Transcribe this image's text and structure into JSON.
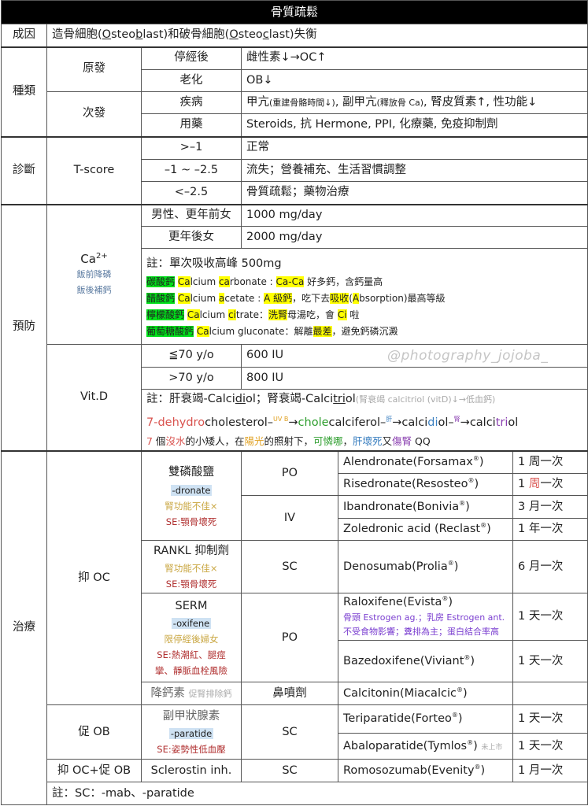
{
  "title": "骨質疏鬆",
  "cause": {
    "label": "成因",
    "text": [
      [
        "造骨細胞("
      ],
      [
        "O",
        "u"
      ],
      [
        "steo"
      ],
      [
        "b",
        "u"
      ],
      [
        "last)和破骨細胞("
      ],
      [
        "O",
        "u"
      ],
      [
        "steo"
      ],
      [
        "c",
        "u"
      ],
      [
        "last)失衡"
      ]
    ]
  },
  "types": {
    "label": "種類",
    "primary": {
      "label": "原發",
      "rows": [
        {
          "k": "停經後",
          "v": [
            [
              "雌性素↓→OC↑"
            ]
          ]
        },
        {
          "k": "老化",
          "v": [
            [
              "OB↓"
            ]
          ]
        }
      ]
    },
    "secondary": {
      "label": "次發",
      "rows": [
        {
          "k": "疾病",
          "v": [
            [
              "甲亢"
            ],
            [
              "(重建骨骼時間↓)",
              "sm"
            ],
            [
              ", 副甲亢"
            ],
            [
              "(釋放骨 Ca)",
              "sm"
            ],
            [
              ", 腎皮質素↑, 性功能↓"
            ]
          ]
        },
        {
          "k": "用藥",
          "v": [
            [
              "Steroids, 抗 Hermone, PPI, 化療藥, 免疫抑制劑"
            ]
          ]
        }
      ]
    }
  },
  "diagnosis": {
    "label": "診斷",
    "metric": "T-score",
    "rows": [
      {
        "k": ">–1",
        "v": "正常"
      },
      {
        "k": "–1 ~ –2.5",
        "v": "流失；營養補充、生活習慣調整"
      },
      {
        "k": "<–2.5",
        "v": "骨質疏鬆；藥物治療"
      }
    ]
  },
  "prevention": {
    "label": "預防",
    "calcium": {
      "label": "Ca",
      "label_sup": "2+",
      "notes": [
        "飯前降磷",
        "飯後補鈣"
      ],
      "rows": [
        {
          "k": "男性、更年前女",
          "v": "1000 mg/day"
        },
        {
          "k": "更年後女",
          "v": "2000 mg/day"
        }
      ],
      "note_title": "註：單次吸收高峰 500mg",
      "forms": [
        [
          [
            "碳酸鈣",
            "g"
          ],
          [
            " "
          ],
          [
            "Ca",
            "y"
          ],
          [
            "lcium "
          ],
          [
            "ca",
            "y"
          ],
          [
            "rbonate : "
          ],
          [
            "Ca-Ca",
            "y"
          ],
          [
            " 好多鈣，含鈣量高"
          ]
        ],
        [
          [
            "醋酸鈣",
            "g"
          ],
          [
            " "
          ],
          [
            "Ca",
            "y"
          ],
          [
            "lcium "
          ],
          [
            "a",
            "y"
          ],
          [
            "cetate : "
          ],
          [
            "A 級鈣",
            "y"
          ],
          [
            "，吃下去"
          ],
          [
            "吸收",
            "y"
          ],
          [
            "("
          ],
          [
            "A",
            "y"
          ],
          [
            "bsorption)最高等級"
          ]
        ],
        [
          [
            "檸檬酸鈣",
            "g"
          ],
          [
            " "
          ],
          [
            "Ca",
            "y"
          ],
          [
            "lcium "
          ],
          [
            "ci",
            "y"
          ],
          [
            "trate："
          ],
          [
            "洗腎",
            "y"
          ],
          [
            "母湯吃，會 "
          ],
          [
            "Ci",
            "y"
          ],
          [
            " 啦"
          ]
        ],
        [
          [
            "葡萄糖酸鈣",
            "g"
          ],
          [
            " "
          ],
          [
            "Ca",
            "y"
          ],
          [
            "lcium gluconate：解離"
          ],
          [
            "最差",
            "y"
          ],
          [
            "，避免鈣磷沉澱"
          ]
        ]
      ]
    },
    "vitd": {
      "label": "Vit.D",
      "rows": [
        {
          "k": "≦70 y/o",
          "v": "600 IU"
        },
        {
          "k": ">70 y/o",
          "v": "800 IU"
        }
      ],
      "note": [
        [
          "註：肝衰竭-Calci"
        ],
        [
          "di",
          "u"
        ],
        [
          "ol；腎衰竭-Calci"
        ],
        [
          "tri",
          "u"
        ],
        [
          "ol"
        ],
        [
          "(腎衰竭 calcitriol (vitD)↓→低血鈣)",
          "gray sm"
        ]
      ],
      "pathway": [
        [
          "7-dehydro",
          "red"
        ],
        [
          "cholesterol–"
        ],
        [
          "UV B",
          "orange sup"
        ],
        [
          "→"
        ],
        [
          "chole",
          "green-t"
        ],
        [
          "calciferol–"
        ],
        [
          "肝",
          "blue-t sup"
        ],
        [
          "→calci"
        ],
        [
          "di",
          "blue-t"
        ],
        [
          "ol–"
        ],
        [
          "腎",
          "purple-t sup"
        ],
        [
          "→calci"
        ],
        [
          "tri",
          "purple-t"
        ],
        [
          "ol"
        ]
      ],
      "mnemonic": [
        [
          "7",
          "red"
        ],
        [
          " 個"
        ],
        [
          "沒水",
          "red"
        ],
        [
          "的小矮人，在"
        ],
        [
          "陽光",
          "orange"
        ],
        [
          "的照射下，"
        ],
        [
          "可憐哪",
          "green-t"
        ],
        [
          "，"
        ],
        [
          "肝壞死",
          "blue-t"
        ],
        [
          "又"
        ],
        [
          "傷腎",
          "purple-t"
        ],
        [
          " QQ"
        ]
      ]
    }
  },
  "treatment": {
    "label": "治療",
    "groups": {
      "anti_oc": "抑 OC",
      "pro_ob": "促 OB",
      "both": "抑 OC+促 OB"
    },
    "bisphosphonate": {
      "name": "雙磷酸鹽",
      "suffix": "-dronate",
      "caution": "腎功能不佳×",
      "se": "SE:顎骨壞死"
    },
    "rankl": {
      "name": "RANKL 抑制劑",
      "caution": "腎功能不佳×",
      "se": "SE:顎骨壞死"
    },
    "serm": {
      "name": "SERM",
      "suffix": "-oxifene",
      "caution": "限停經後婦女",
      "se1": "SE:熱潮紅、腿痙",
      "se2": "攣、靜脈血栓風險"
    },
    "calcitonin": {
      "name": "降鈣素",
      "note": "促腎排除鈣"
    },
    "pth": {
      "name": "副甲狀腺素",
      "suffix": "-paratide",
      "se": "SE:姿勢性低血壓"
    },
    "sclerostin": {
      "name": "Sclerostin inh."
    },
    "routes": {
      "po": "PO",
      "iv": "IV",
      "sc": "SC",
      "nasal": "鼻噴劑"
    },
    "reg": "®",
    "drugs": [
      {
        "name": "Alendronate(Forsamax",
        "freq": "1 周一次"
      },
      {
        "name": "Risedronate(Resosteo",
        "freq_pre": "1 ",
        "freq_red": "周",
        "freq_post": "一次"
      },
      {
        "name": "Ibandronate(Bonivia",
        "freq": "3 月一次"
      },
      {
        "name": "Zoledronic acid (Reclast",
        "freq": "1 年一次"
      },
      {
        "name": "Denosumab(Prolia",
        "freq": "6 月一次"
      },
      {
        "name": "Raloxifene(Evista",
        "freq": "1 天一次",
        "note1": "骨頭 Estrogen ag.；乳房 Estrogen ant.",
        "note2": "不受食物影響；糞排為主；蛋白結合率高"
      },
      {
        "name": "Bazedoxifene(Viviant",
        "freq": "1 天一次"
      },
      {
        "name": "Calcitonin(Miacalcic",
        "freq": ""
      },
      {
        "name": "Teriparatide(Forteo",
        "freq": "1 天一次"
      },
      {
        "name": "Abaloparatide(Tymlos",
        "freq": "1 天一次",
        "tag": "未上市"
      },
      {
        "name": "Romosozumab(Evenity",
        "freq": "1 月一次"
      }
    ],
    "footnote": "註：SC：-mab、-paratide"
  },
  "watermark": "@photography_jojoba_",
  "colors": {
    "highlight_green": "#00e01a",
    "highlight_yellow": "#ffff00",
    "title_bg": "#000000"
  }
}
